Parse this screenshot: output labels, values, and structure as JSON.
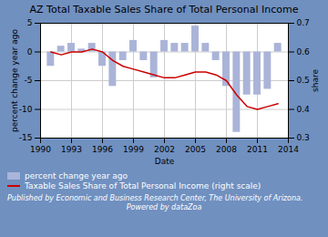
{
  "chart_data": {
    "type": "bar",
    "title": "AZ Total Taxable Sales Share of Total Personal Income",
    "xlabel": "Date",
    "ylabel": "percent change year ago",
    "y2label": "share",
    "x": [
      1991,
      1992,
      1993,
      1994,
      1995,
      1996,
      1997,
      1998,
      1999,
      2000,
      2001,
      2002,
      2003,
      2004,
      2005,
      2006,
      2007,
      2008,
      2009,
      2010,
      2011,
      2012,
      2013
    ],
    "series": [
      {
        "name": "percent change year ago",
        "type": "bar",
        "color": "#aab4d8",
        "values": [
          -2.5,
          1.0,
          1.5,
          0.5,
          1.5,
          -2.5,
          -6.0,
          -1.5,
          2.0,
          -1.5,
          -4.5,
          2.0,
          1.5,
          1.5,
          4.5,
          1.5,
          -1.5,
          -6.0,
          -14.0,
          -7.5,
          -7.5,
          -6.5,
          1.5
        ]
      },
      {
        "name": "Taxable Sales Share of Total Personal Income (right scale)",
        "type": "line",
        "color": "#cc0000",
        "axis": "y2",
        "values": [
          0.6,
          0.59,
          0.6,
          0.6,
          0.61,
          0.6,
          0.57,
          0.55,
          0.54,
          0.53,
          0.52,
          0.51,
          0.51,
          0.52,
          0.53,
          0.53,
          0.52,
          0.5,
          0.45,
          0.41,
          0.4,
          0.41,
          0.42
        ]
      }
    ],
    "xlim": [
      1990,
      2014
    ],
    "xticks": [
      1990,
      1993,
      1996,
      1999,
      2002,
      2005,
      2008,
      2011,
      2014
    ],
    "ylim": [
      -15,
      5
    ],
    "yticks": [
      -15,
      -10,
      -5,
      0,
      5
    ],
    "y2lim": [
      0.3,
      0.7
    ],
    "y2ticks": [
      0.3,
      0.4,
      0.5,
      0.6,
      0.7
    ],
    "grid": true,
    "legend": "lower left",
    "annotations": [
      "Published by",
      "Economic and Business Research Center, The University of Arizona.",
      "Powered by dataZoa"
    ]
  }
}
